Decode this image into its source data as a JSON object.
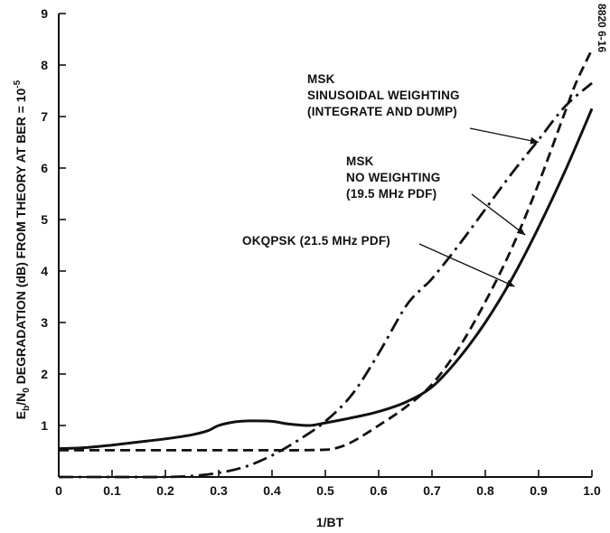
{
  "chart_data": {
    "type": "line",
    "figure_id": "8820 6-16",
    "xlabel": "1/BT",
    "ylabel": {
      "prefix": "E",
      "sub1": "b",
      "mid": "/N",
      "sub2": "0",
      "rest": " DEGRADATION (dB) FROM THEORY AT BER = 10",
      "sup": "-5"
    },
    "xlim": [
      0,
      1.0
    ],
    "ylim": [
      0,
      9
    ],
    "x_ticks": [
      0,
      0.1,
      0.2,
      0.3,
      0.4,
      0.5,
      0.6,
      0.7,
      0.8,
      0.9,
      1.0
    ],
    "x_tick_labels": [
      "0",
      "0.1",
      "0.2",
      "0.3",
      "0.4",
      "0.5",
      "0.6",
      "0.7",
      "0.8",
      "0.9",
      "1.0"
    ],
    "y_ticks": [
      1,
      2,
      3,
      4,
      5,
      6,
      7,
      8,
      9
    ],
    "y_tick_labels": [
      "1",
      "2",
      "3",
      "4",
      "5",
      "6",
      "7",
      "8",
      "9"
    ],
    "grid": false,
    "series": [
      {
        "id": "okqpsk",
        "style": "solid",
        "x": [
          0,
          0.05,
          0.1,
          0.15,
          0.2,
          0.25,
          0.28,
          0.3,
          0.33,
          0.36,
          0.4,
          0.43,
          0.47,
          0.5,
          0.55,
          0.6,
          0.65,
          0.7,
          0.75,
          0.8,
          0.85,
          0.9,
          0.95,
          1.0
        ],
        "y": [
          0.55,
          0.57,
          0.62,
          0.68,
          0.74,
          0.82,
          0.9,
          1.0,
          1.07,
          1.09,
          1.08,
          1.03,
          1.0,
          1.05,
          1.15,
          1.27,
          1.45,
          1.75,
          2.3,
          3.0,
          3.85,
          4.85,
          5.95,
          7.15
        ]
      },
      {
        "id": "msk-no-weighting",
        "style": "dashed",
        "x": [
          0,
          0.1,
          0.2,
          0.3,
          0.4,
          0.45,
          0.5,
          0.52,
          0.55,
          0.6,
          0.65,
          0.7,
          0.75,
          0.8,
          0.85,
          0.9,
          0.95,
          0.97,
          1.0
        ],
        "y": [
          0.52,
          0.52,
          0.52,
          0.52,
          0.52,
          0.52,
          0.53,
          0.56,
          0.68,
          1.0,
          1.35,
          1.8,
          2.5,
          3.4,
          4.45,
          5.7,
          7.1,
          7.65,
          8.3
        ]
      },
      {
        "id": "msk-sinusoidal-weighting",
        "style": "dash-dot",
        "x": [
          0,
          0.1,
          0.2,
          0.25,
          0.3,
          0.35,
          0.4,
          0.45,
          0.5,
          0.55,
          0.6,
          0.65,
          0.68,
          0.7,
          0.75,
          0.8,
          0.85,
          0.9,
          0.95,
          1.0
        ],
        "y": [
          0.0,
          0.0,
          0.0,
          0.02,
          0.08,
          0.2,
          0.42,
          0.72,
          1.08,
          1.6,
          2.4,
          3.3,
          3.65,
          3.85,
          4.5,
          5.2,
          5.9,
          6.55,
          7.2,
          7.65
        ]
      }
    ],
    "annotations": [
      {
        "id": "msk-sinusoidal",
        "lines": [
          "MSK",
          "SINUSOIDAL WEIGHTING",
          "(INTEGRATE AND DUMP)"
        ],
        "arrow_to": [
          0.9,
          6.5
        ]
      },
      {
        "id": "msk-no-weighting",
        "lines": [
          "MSK",
          "NO WEIGHTING",
          "(19.5 MHz PDF)"
        ],
        "arrow_to": [
          0.875,
          4.7
        ]
      },
      {
        "id": "okqpsk",
        "lines": [
          "OKQPSK (21.5 MHz PDF)"
        ],
        "arrow_to": [
          0.855,
          3.7
        ]
      }
    ]
  }
}
